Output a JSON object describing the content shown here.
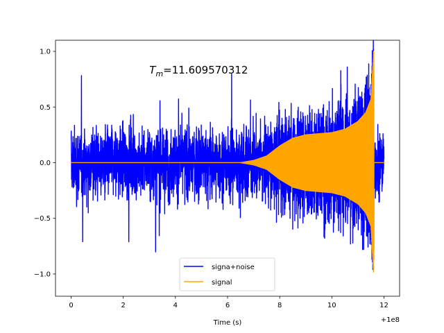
{
  "chart_data": {
    "type": "line",
    "title": "",
    "xlabel": "Time (s)",
    "ylabel": "",
    "x_offset_label": "+1e8",
    "xlim": [
      -0.6,
      12.6
    ],
    "ylim": [
      -1.2,
      1.1
    ],
    "xticks": [
      0,
      2,
      4,
      6,
      8,
      10,
      12
    ],
    "xtick_labels": [
      "0",
      "2",
      "4",
      "6",
      "8",
      "10",
      "12"
    ],
    "yticks": [
      -1.0,
      -0.5,
      0.0,
      0.5,
      1.0
    ],
    "ytick_labels": [
      "−1.0",
      "−0.5",
      "0.0",
      "0.5",
      "1.0"
    ],
    "annotation": {
      "prefix": "T",
      "subscript": "m",
      "value_text": "=11.609570312",
      "x": 3.0,
      "y": 0.8
    },
    "legend": {
      "position": "lower center",
      "entries": [
        {
          "label": "signa+noise",
          "color": "#0000ff"
        },
        {
          "label": "signal",
          "color": "#ffa500"
        }
      ]
    },
    "series": [
      {
        "name": "signa+noise",
        "color": "#0000ff",
        "x_range": [
          0,
          12.0
        ],
        "noise_envelope": {
          "typical": 0.55,
          "max_positive": 0.86,
          "max_negative": -1.04
        }
      },
      {
        "name": "signal",
        "color": "#ffa500",
        "x_range": [
          0,
          12.0
        ],
        "merger_time": 11.609570312,
        "envelope_points": [
          {
            "x": 0,
            "amp": 0.0
          },
          {
            "x": 6.5,
            "amp": 0.0
          },
          {
            "x": 7.0,
            "amp": 0.02
          },
          {
            "x": 7.5,
            "amp": 0.06
          },
          {
            "x": 8.0,
            "amp": 0.15
          },
          {
            "x": 8.5,
            "amp": 0.22
          },
          {
            "x": 9.0,
            "amp": 0.25
          },
          {
            "x": 9.5,
            "amp": 0.26
          },
          {
            "x": 10.0,
            "amp": 0.27
          },
          {
            "x": 10.5,
            "amp": 0.3
          },
          {
            "x": 11.0,
            "amp": 0.37
          },
          {
            "x": 11.3,
            "amp": 0.45
          },
          {
            "x": 11.5,
            "amp": 0.57
          },
          {
            "x": 11.6,
            "amp": 1.0
          }
        ],
        "post_merger_value": 0.0,
        "peak_max": 1.0,
        "peak_min": -0.87
      }
    ]
  }
}
